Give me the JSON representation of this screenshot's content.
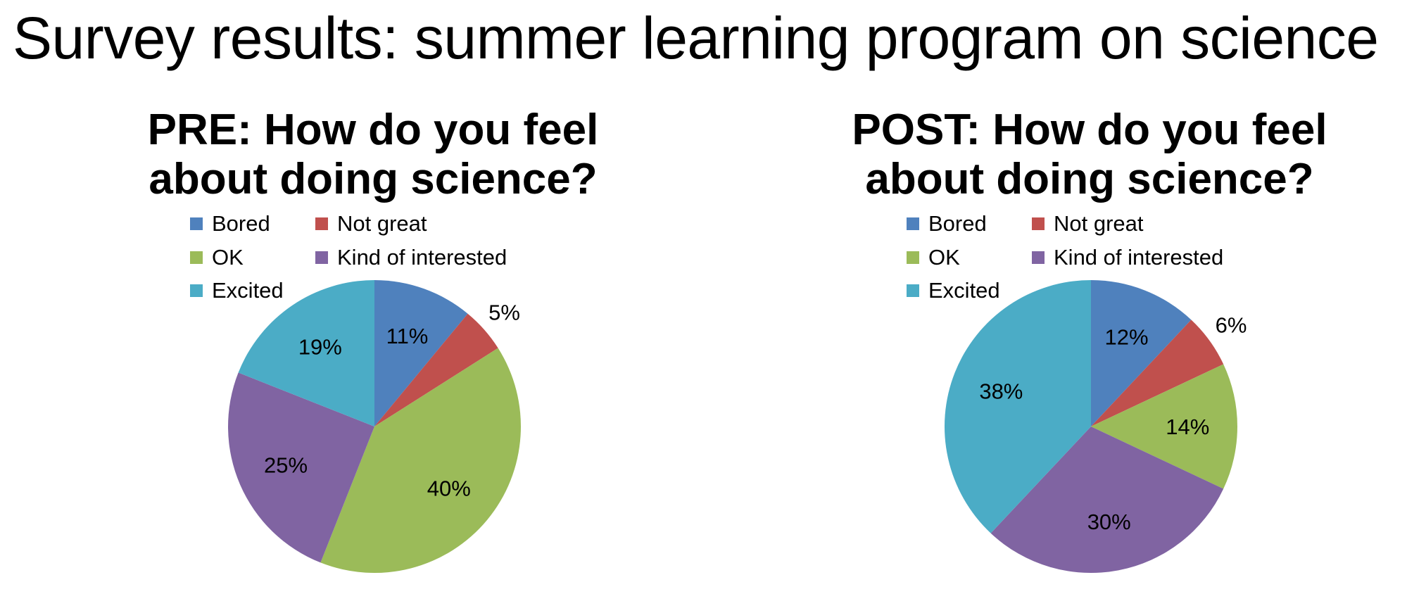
{
  "page": {
    "title": "Survey results: summer learning program on science"
  },
  "chart_data": [
    {
      "type": "pie",
      "title_lines": [
        "PRE: How do you feel",
        "about doing science?"
      ],
      "categories": [
        "Bored",
        "Not great",
        "OK",
        "Kind of interested",
        "Excited"
      ],
      "values": [
        11,
        5,
        40,
        25,
        19
      ],
      "labels": [
        "11%",
        "5%",
        "40%",
        "25%",
        "19%"
      ],
      "colors": [
        "#4F81BD",
        "#C0504D",
        "#9BBB59",
        "#8064A2",
        "#4BACC6"
      ],
      "legend": "top"
    },
    {
      "type": "pie",
      "title_lines": [
        "POST: How do you feel",
        "about doing science?"
      ],
      "categories": [
        "Bored",
        "Not great",
        "OK",
        "Kind of interested",
        "Excited"
      ],
      "values": [
        12,
        6,
        14,
        30,
        38
      ],
      "labels": [
        "12%",
        "6%",
        "14%",
        "30%",
        "38%"
      ],
      "colors": [
        "#4F81BD",
        "#C0504D",
        "#9BBB59",
        "#8064A2",
        "#4BACC6"
      ],
      "legend": "top"
    }
  ]
}
